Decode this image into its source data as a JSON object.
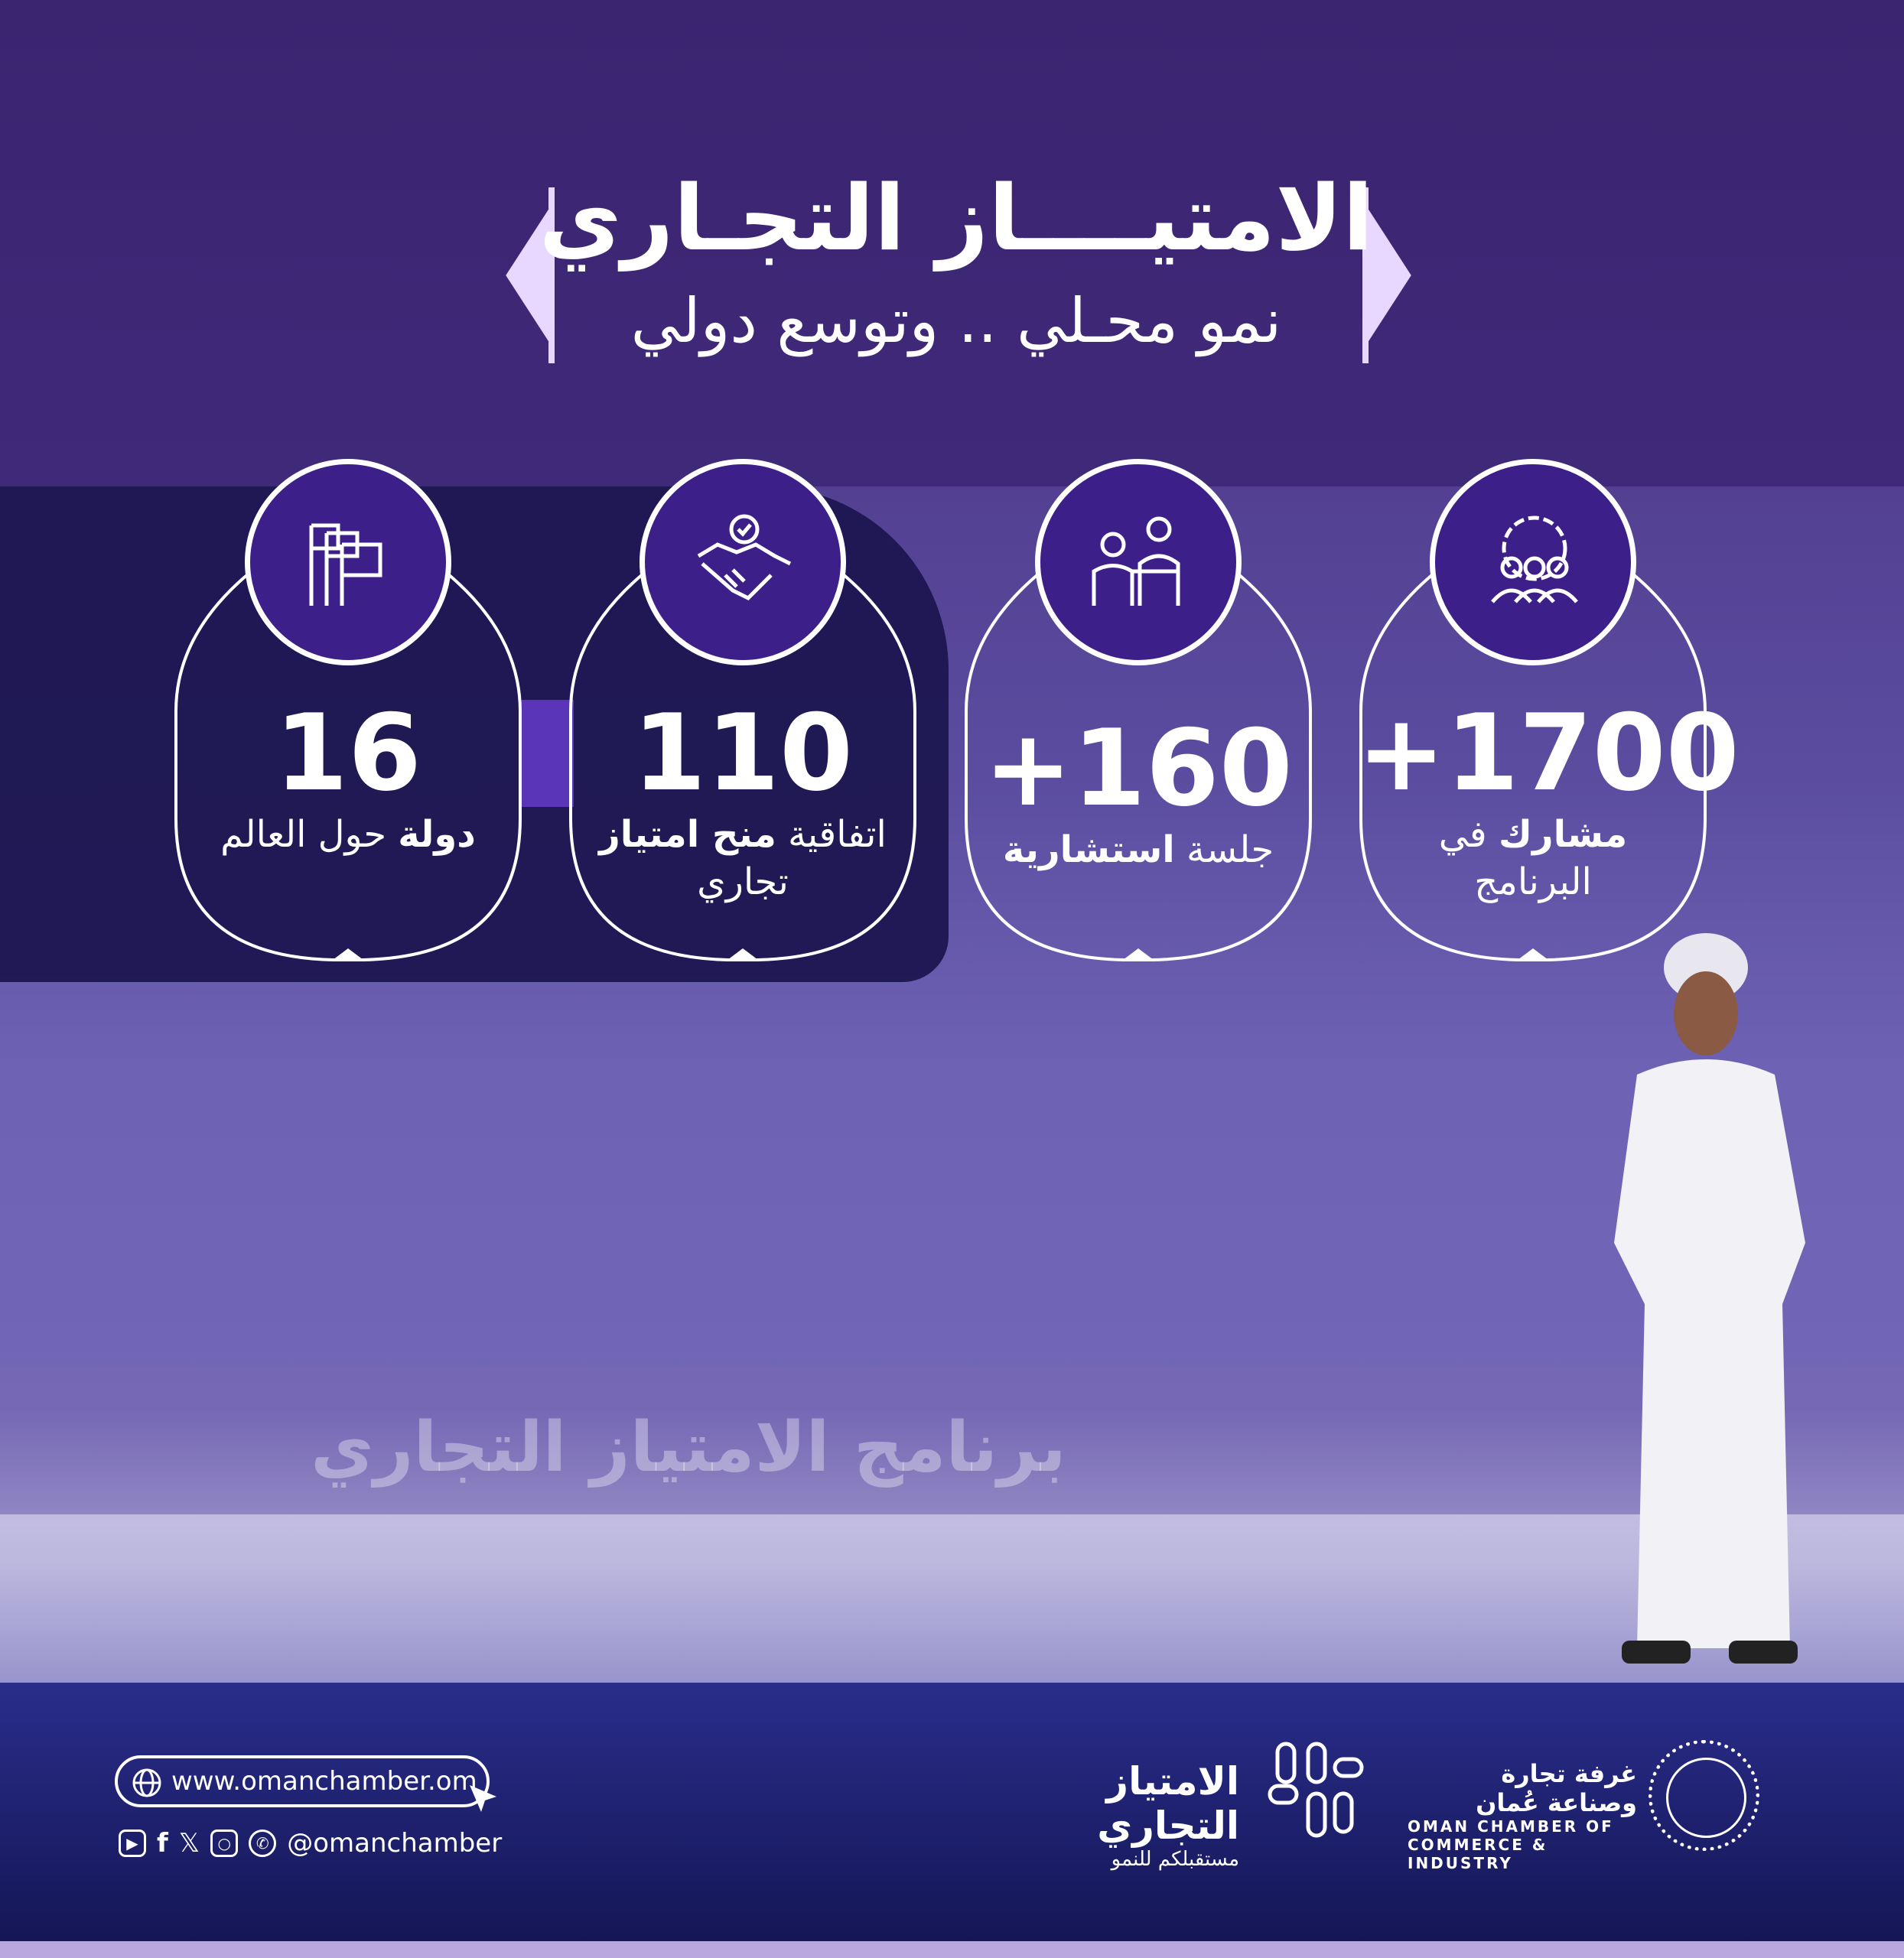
{
  "header": {
    "title": "الامتيــــاز التجـاري",
    "subtitle": "نمو محـلي .. وتوسع دولي"
  },
  "stats": [
    {
      "icon": "flags-icon",
      "value": "16",
      "label_bold": "دولة",
      "label_rest": " حول العالم"
    },
    {
      "icon": "handshake-icon",
      "value": "110",
      "label_rest": "اتفاقية ",
      "label_bold": "منح امتياز",
      "label_tail": " تجاري"
    },
    {
      "icon": "consultation-icon",
      "value": "+160",
      "label_rest": "جلسة ",
      "label_bold": "استشارية"
    },
    {
      "icon": "participants-gear-icon",
      "value": "+1700",
      "label_bold": "مشارك",
      "label_rest": " في البرنامج"
    }
  ],
  "background": {
    "banner": "برنامج الامتياز التجاري"
  },
  "footer": {
    "url": "www.omanchamber.om",
    "handle": "@omanchamber",
    "social_icons": [
      "youtube-icon",
      "facebook-icon",
      "x-icon",
      "instagram-icon",
      "whatsapp-icon"
    ],
    "program_logo": {
      "name": "الامتياز التجاري",
      "tagline": "مستقبلكم للنمو"
    },
    "chamber": {
      "ar": "غرفة تجارة وصناعة عُمان",
      "en1": "OMAN CHAMBER OF",
      "en2": "COMMERCE & INDUSTRY"
    }
  },
  "colors": {
    "primary": "#3d1f8a",
    "band": "#1c1650",
    "accent": "#e8d8ff"
  }
}
